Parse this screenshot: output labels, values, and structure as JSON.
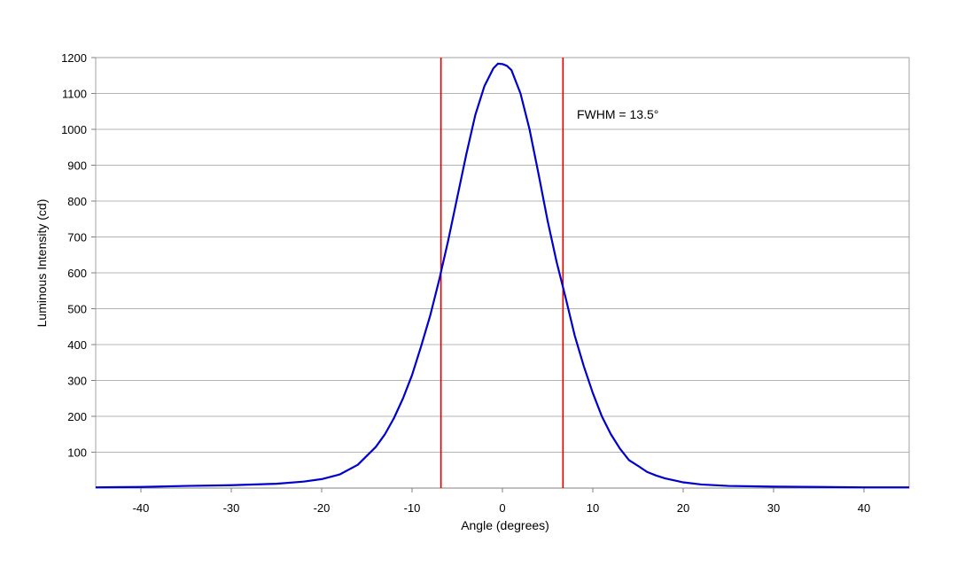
{
  "chart_data": {
    "type": "line",
    "title": "",
    "xlabel": "Angle (degrees)",
    "ylabel": "Luminous Intensity (cd)",
    "xlim": [
      -45,
      45
    ],
    "ylim": [
      0,
      1200
    ],
    "xticks": [
      -40,
      -30,
      -20,
      -10,
      0,
      10,
      20,
      30,
      40
    ],
    "yticks": [
      100,
      200,
      300,
      400,
      500,
      600,
      700,
      800,
      900,
      1000,
      1100,
      1200
    ],
    "grid": "horizontal",
    "line_color": "#0000cc",
    "marker_color": "#dd0000",
    "series": [
      {
        "x": [
          -45,
          -40,
          -35,
          -30,
          -25,
          -22,
          -20,
          -18,
          -16,
          -15,
          -14,
          -13,
          -12,
          -11,
          -10,
          -9,
          -8,
          -7,
          -6,
          -5,
          -4,
          -3,
          -2,
          -1,
          -0.5,
          0,
          0.5,
          1,
          2,
          3,
          4,
          5,
          6,
          7,
          8,
          9,
          10,
          11,
          12,
          13,
          14,
          15,
          16,
          17,
          18,
          20,
          22,
          25,
          30,
          35,
          40,
          45
        ],
        "y": [
          2,
          3,
          6,
          8,
          12,
          18,
          25,
          38,
          65,
          90,
          115,
          150,
          195,
          250,
          315,
          395,
          480,
          580,
          690,
          810,
          930,
          1040,
          1120,
          1170,
          1183,
          1182,
          1177,
          1165,
          1100,
          1000,
          875,
          745,
          630,
          530,
          425,
          340,
          265,
          200,
          150,
          110,
          78,
          62,
          45,
          35,
          27,
          16,
          10,
          6,
          4,
          3,
          2,
          2
        ]
      }
    ],
    "markers": [
      -6.8,
      6.7
    ],
    "annotation": "FWHM = 13.5°"
  }
}
